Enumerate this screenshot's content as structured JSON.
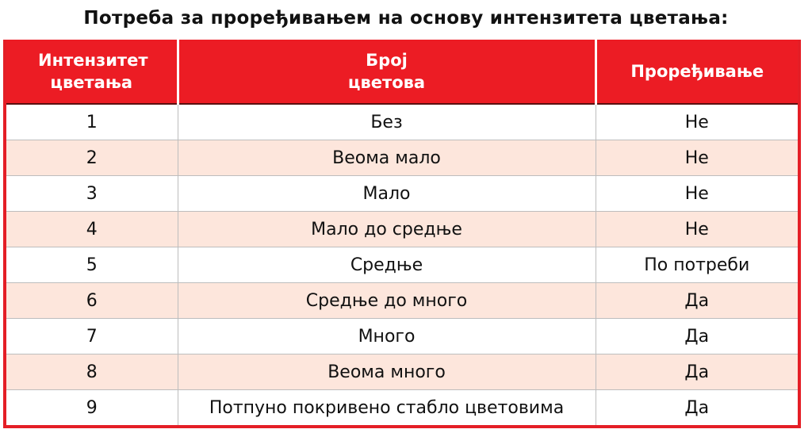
{
  "title": "Потреба за проређивањем на основу интензитета цветања:",
  "headers": [
    "Интензитет цветања",
    "Број цветова",
    "Проређивање"
  ],
  "rows": [
    [
      "1",
      "Без",
      "Не"
    ],
    [
      "2",
      "Веома мало",
      "Не"
    ],
    [
      "3",
      "Мало",
      "Не"
    ],
    [
      "4",
      "Мало до средње",
      "Не"
    ],
    [
      "5",
      "Средње",
      "По потреби"
    ],
    [
      "6",
      "Средње до много",
      "Да"
    ],
    [
      "7",
      "Много",
      "Да"
    ],
    [
      "8",
      "Веома много",
      "Да"
    ],
    [
      "9",
      "Потпуно покривено стабло цветовима",
      "Да"
    ]
  ],
  "colors": {
    "header_bg": "#ec1c24",
    "alt_row_bg": "#fde6dc"
  }
}
